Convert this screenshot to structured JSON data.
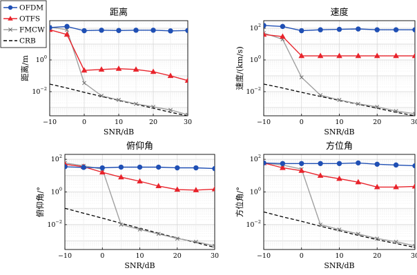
{
  "chart_data": [
    {
      "type": "line",
      "title": "距离",
      "xlabel": "SNR/dB",
      "ylabel": "距离/m",
      "yscale": "log",
      "xlim": [
        -10,
        30
      ],
      "ylim": [
        0.0003,
        300
      ],
      "x_ticks": [
        -10,
        0,
        10,
        20,
        30
      ],
      "y_ticks": [
        0.01,
        1,
        100
      ],
      "grid": true,
      "legend": "outside-top-left",
      "x": [
        -10,
        -5,
        0,
        5,
        10,
        15,
        20,
        25,
        30
      ],
      "series": [
        {
          "name": "OFDM",
          "color": "#1f4fb4",
          "marker": "circle",
          "values": [
            110,
            130,
            70,
            75,
            72,
            75,
            75,
            68,
            72
          ]
        },
        {
          "name": "OTFS",
          "color": "#e8232b",
          "marker": "triangle",
          "values": [
            80,
            40,
            0.22,
            0.25,
            0.28,
            0.25,
            0.18,
            0.1,
            0.05
          ]
        },
        {
          "name": "FMCW",
          "color": "#a0a0a0",
          "marker": "x",
          "values": [
            120,
            80,
            0.035,
            0.0055,
            0.003,
            0.0017,
            0.0011,
            0.0007,
            0.00035
          ]
        },
        {
          "name": "CRB",
          "color": "#000000",
          "marker": "none",
          "dash": true,
          "values": [
            0.03,
            0.017,
            0.009,
            0.005,
            0.0028,
            0.0016,
            0.0009,
            0.0005,
            0.0003
          ]
        }
      ]
    },
    {
      "type": "line",
      "title": "速度",
      "xlabel": "SNR/dB",
      "ylabel": "速度/(km/s)",
      "yscale": "log",
      "xlim": [
        -10,
        30
      ],
      "ylim": [
        0.0003,
        300
      ],
      "x_ticks": [
        -10,
        0,
        10,
        20,
        30
      ],
      "y_ticks": [
        0.01,
        1,
        100
      ],
      "grid": true,
      "x": [
        -10,
        -5,
        0,
        5,
        10,
        15,
        20,
        25,
        30
      ],
      "series": [
        {
          "name": "OFDM",
          "color": "#1f4fb4",
          "marker": "circle",
          "values": [
            150,
            130,
            70,
            80,
            85,
            90,
            80,
            80,
            80
          ]
        },
        {
          "name": "OTFS",
          "color": "#e8232b",
          "marker": "triangle",
          "values": [
            40,
            30,
            1.8,
            1.8,
            1.8,
            1.8,
            1.8,
            1.8,
            1.8
          ]
        },
        {
          "name": "FMCW",
          "color": "#a0a0a0",
          "marker": "x",
          "values": [
            50,
            20,
            0.08,
            0.006,
            0.003,
            0.0017,
            0.0011,
            0.0006,
            0.0004
          ]
        },
        {
          "name": "CRB",
          "color": "#000000",
          "marker": "none",
          "dash": true,
          "values": [
            0.03,
            0.017,
            0.009,
            0.005,
            0.0028,
            0.0016,
            0.0009,
            0.0005,
            0.0003
          ]
        }
      ]
    },
    {
      "type": "line",
      "title": "俯仰角",
      "xlabel": "SNR/dB",
      "ylabel": "俯仰角/°",
      "yscale": "log",
      "xlim": [
        -10,
        30
      ],
      "ylim": [
        0.0003,
        200
      ],
      "x_ticks": [
        -10,
        0,
        10,
        20,
        30
      ],
      "y_ticks": [
        0.01,
        1,
        100
      ],
      "grid": true,
      "x": [
        -10,
        -5,
        0,
        5,
        10,
        15,
        20,
        25,
        30
      ],
      "series": [
        {
          "name": "OFDM",
          "color": "#1f4fb4",
          "marker": "circle",
          "values": [
            35,
            32,
            30,
            33,
            33,
            33,
            30,
            30,
            27
          ]
        },
        {
          "name": "OTFS",
          "color": "#e8232b",
          "marker": "triangle",
          "values": [
            50,
            35,
            16,
            8,
            4.5,
            2.3,
            1.4,
            1.3,
            1.5
          ]
        },
        {
          "name": "FMCW",
          "color": "#a0a0a0",
          "marker": "x",
          "values": [
            60,
            40,
            25,
            0.01,
            0.005,
            0.0027,
            0.0014,
            0.0009,
            0.0005
          ]
        },
        {
          "name": "CRB",
          "color": "#000000",
          "marker": "none",
          "dash": true,
          "values": [
            0.1,
            0.05,
            0.025,
            0.012,
            0.006,
            0.003,
            0.0015,
            0.0008,
            0.0004
          ]
        }
      ]
    },
    {
      "type": "line",
      "title": "方位角",
      "xlabel": "SNR/dB",
      "ylabel": "方位角/°",
      "yscale": "log",
      "xlim": [
        -10,
        30
      ],
      "ylim": [
        0.0003,
        200
      ],
      "x_ticks": [
        -10,
        0,
        10,
        20,
        30
      ],
      "y_ticks": [
        0.01,
        1,
        100
      ],
      "grid": true,
      "x": [
        -10,
        -5,
        0,
        5,
        10,
        15,
        20,
        25,
        30
      ],
      "series": [
        {
          "name": "OFDM",
          "color": "#1f4fb4",
          "marker": "circle",
          "values": [
            60,
            55,
            55,
            55,
            55,
            60,
            50,
            45,
            40
          ]
        },
        {
          "name": "OTFS",
          "color": "#e8232b",
          "marker": "triangle",
          "values": [
            60,
            30,
            20,
            10,
            6.5,
            4,
            2,
            2,
            2.2
          ]
        },
        {
          "name": "FMCW",
          "color": "#a0a0a0",
          "marker": "x",
          "values": [
            60,
            45,
            25,
            0.01,
            0.005,
            0.0027,
            0.0014,
            0.0009,
            0.0005
          ]
        },
        {
          "name": "CRB",
          "color": "#000000",
          "marker": "none",
          "dash": true,
          "values": [
            0.06,
            0.03,
            0.016,
            0.008,
            0.0042,
            0.0022,
            0.0012,
            0.0007,
            0.0004
          ]
        }
      ]
    }
  ]
}
